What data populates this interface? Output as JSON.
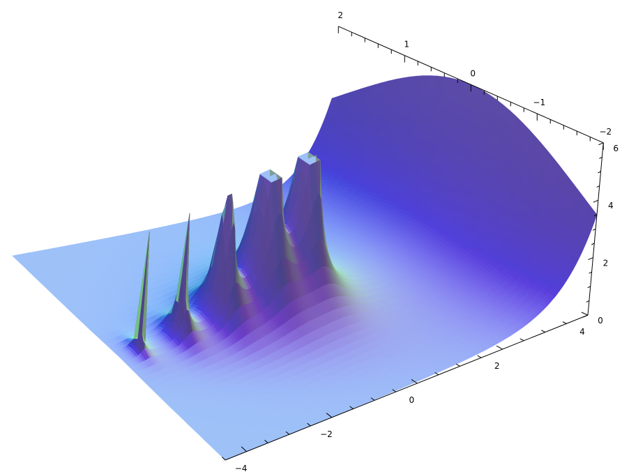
{
  "chart_data": {
    "type": "surface",
    "function": "Abs[Gamma[x + I y]]",
    "x_range": [
      -4.5,
      4
    ],
    "y_range": [
      -2,
      2
    ],
    "z_range": [
      0,
      6
    ],
    "z_clip": 6,
    "x_ticks": [
      {
        "value": -4,
        "label": "−4"
      },
      {
        "value": -2,
        "label": "−2"
      },
      {
        "value": 0,
        "label": "0"
      },
      {
        "value": 2,
        "label": "2"
      },
      {
        "value": 4,
        "label": "4"
      }
    ],
    "y_ticks": [
      {
        "value": 2,
        "label": "2"
      },
      {
        "value": 1,
        "label": "1"
      },
      {
        "value": 0,
        "label": "0"
      },
      {
        "value": -1,
        "label": "−1"
      },
      {
        "value": -2,
        "label": "−2"
      }
    ],
    "z_ticks": [
      {
        "value": 0,
        "label": "0"
      },
      {
        "value": 2,
        "label": "2"
      },
      {
        "value": 4,
        "label": "4"
      },
      {
        "value": 6,
        "label": "6"
      }
    ],
    "grid": false,
    "colors": {
      "flat": "#a0c4f0",
      "high": "#7360b0",
      "axis": "#000000"
    }
  }
}
